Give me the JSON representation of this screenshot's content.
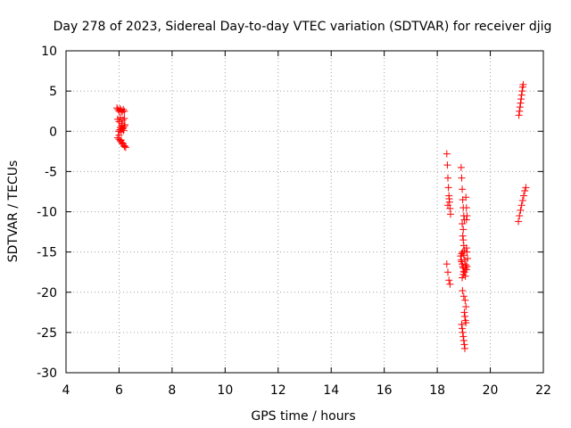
{
  "chart_data": {
    "type": "scatter",
    "title": "Day 278 of 2023, Sidereal Day-to-day VTEC variation (SDTVAR) for receiver djig",
    "xlabel": "GPS time / hours",
    "ylabel": "SDTVAR / TECUs",
    "xlim": [
      4,
      22
    ],
    "ylim": [
      -30,
      10
    ],
    "xticks": [
      "4",
      "6",
      "8",
      "10",
      "12",
      "14",
      "16",
      "18",
      "20",
      "22"
    ],
    "yticks": [
      "-30",
      "-25",
      "-20",
      "-15",
      "-10",
      "-5",
      "0",
      "5",
      "10"
    ],
    "grid": true,
    "marker": "+",
    "series": [
      {
        "name": "SDTVAR",
        "color": "#ff0000",
        "x": [
          5.92,
          5.96,
          6.0,
          6.04,
          6.08,
          6.12,
          6.16,
          6.2,
          5.95,
          6.0,
          6.05,
          6.1,
          6.15,
          6.2,
          6.22,
          5.98,
          6.03,
          6.08,
          6.13,
          6.17,
          6.05,
          6.1,
          6.15,
          6.2,
          5.95,
          6.0,
          6.05,
          6.1,
          6.15,
          6.2,
          6.25,
          6.0,
          6.08,
          6.14,
          6.2,
          18.36,
          18.38,
          18.4,
          18.42,
          18.44,
          18.46,
          18.48,
          18.5,
          18.4,
          18.45,
          18.36,
          18.4,
          18.44,
          18.48,
          18.9,
          18.92,
          18.94,
          18.96,
          18.98,
          19.0,
          19.02,
          18.94,
          18.98,
          18.96,
          18.98,
          19.0,
          19.02,
          19.08,
          19.1,
          19.12,
          19.1,
          18.88,
          18.92,
          18.96,
          19.0,
          18.9,
          18.94,
          18.98,
          19.02,
          19.06,
          19.1,
          19.12,
          18.92,
          18.96,
          19.0,
          19.04,
          19.08,
          18.94,
          18.98,
          19.06,
          19.1,
          19.12,
          19.14,
          18.95,
          19.0,
          19.05,
          19.08,
          19.02,
          19.04,
          19.06,
          19.08,
          18.92,
          18.94,
          18.96,
          18.98,
          19.0,
          19.02,
          19.04,
          21.08,
          21.1,
          21.12,
          21.14,
          21.16,
          21.18,
          21.2,
          21.22,
          21.24,
          21.06,
          21.1,
          21.14,
          21.18,
          21.22,
          21.26,
          21.3,
          21.34
        ],
        "y": [
          2.9,
          2.7,
          2.5,
          2.8,
          2.6,
          2.4,
          2.7,
          2.5,
          1.5,
          1.2,
          1.7,
          1.0,
          1.4,
          1.6,
          0.8,
          0.0,
          0.2,
          -0.1,
          0.3,
          0.1,
          0.5,
          0.7,
          0.4,
          0.6,
          -0.8,
          -1.0,
          -1.2,
          -1.4,
          -1.6,
          -1.8,
          -2.0,
          -0.5,
          -1.1,
          -1.5,
          -1.9,
          -2.8,
          -4.2,
          -5.8,
          -7.0,
          -8.0,
          -8.8,
          -9.6,
          -10.3,
          -9.2,
          -8.4,
          -16.5,
          -17.5,
          -18.5,
          -19.0,
          -4.5,
          -5.8,
          -7.2,
          -8.5,
          -9.5,
          -10.5,
          -11.0,
          -11.5,
          -12.2,
          -13.0,
          -13.5,
          -14.2,
          -14.8,
          -8.2,
          -9.5,
          -10.5,
          -11.0,
          -15.5,
          -16.2,
          -16.8,
          -17.4,
          -16.0,
          -16.5,
          -17.0,
          -17.5,
          -18.0,
          -17.2,
          -16.8,
          -15.2,
          -15.0,
          -15.4,
          -16.0,
          -16.6,
          -18.2,
          -17.8,
          -17.0,
          -14.5,
          -15.0,
          -15.8,
          -19.8,
          -20.5,
          -21.0,
          -21.8,
          -22.5,
          -23.0,
          -23.5,
          -23.8,
          -24.0,
          -24.5,
          -25.0,
          -25.5,
          -26.0,
          -26.5,
          -27.0,
          2.0,
          2.5,
          3.0,
          3.5,
          4.0,
          4.5,
          5.0,
          5.5,
          5.8,
          -11.2,
          -10.5,
          -9.8,
          -9.2,
          -8.6,
          -8.0,
          -7.4,
          -7.0
        ]
      }
    ]
  }
}
